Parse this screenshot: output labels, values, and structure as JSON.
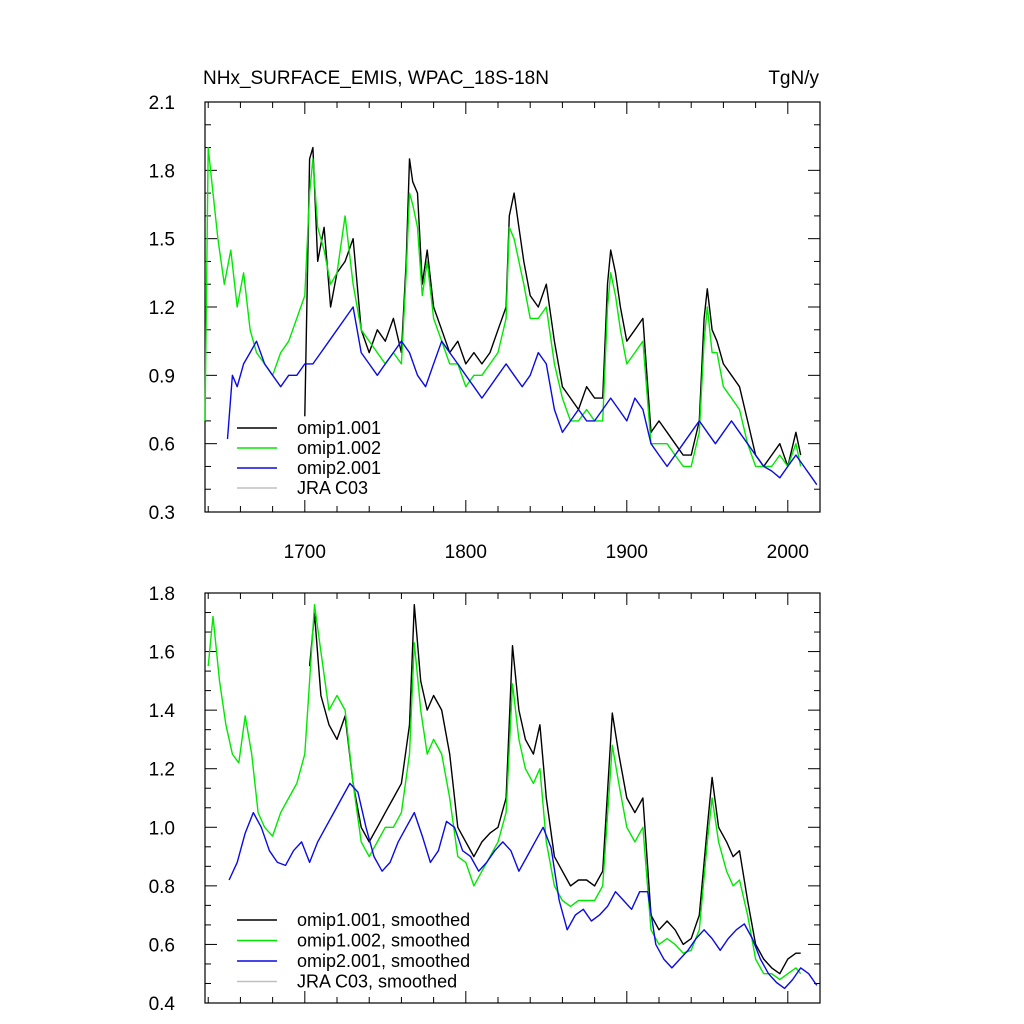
{
  "colors": {
    "omip1_001": "#000000",
    "omip1_002": "#00e800",
    "omip2_001": "#0a0ae6",
    "jra": "#c0c0c0"
  },
  "chart_data": [
    {
      "type": "line",
      "title": "NHx_SURFACE_EMIS, WPAC_18S-18N",
      "units": "TgN/y",
      "xlim": [
        1638,
        2020
      ],
      "ylim": [
        0.3,
        2.1
      ],
      "yticks": [
        "0.3",
        "0.6",
        "0.9",
        "1.2",
        "1.5",
        "1.8",
        "2.1"
      ],
      "xticks": [
        "1700",
        "1800",
        "1900",
        "2000"
      ],
      "legend": [
        "omip1.001",
        "omip1.002",
        "omip2.001",
        "JRA C03"
      ],
      "series": [
        {
          "name": "omip1.001",
          "key": "omip1_001",
          "x": [
            1700,
            1703,
            1705,
            1708,
            1712,
            1716,
            1720,
            1725,
            1730,
            1735,
            1740,
            1745,
            1750,
            1755,
            1760,
            1763,
            1765,
            1767,
            1770,
            1773,
            1776,
            1780,
            1785,
            1790,
            1795,
            1800,
            1805,
            1810,
            1815,
            1820,
            1825,
            1827,
            1830,
            1833,
            1836,
            1840,
            1845,
            1850,
            1855,
            1860,
            1865,
            1870,
            1875,
            1880,
            1885,
            1888,
            1890,
            1893,
            1896,
            1900,
            1905,
            1910,
            1915,
            1920,
            1925,
            1930,
            1935,
            1940,
            1945,
            1948,
            1950,
            1953,
            1956,
            1960,
            1965,
            1970,
            1975,
            1980,
            1985,
            1990,
            1995,
            2000,
            2005,
            2008
          ],
          "y": [
            0.72,
            1.85,
            1.9,
            1.4,
            1.55,
            1.2,
            1.35,
            1.4,
            1.5,
            1.1,
            1.0,
            1.1,
            1.05,
            1.15,
            1.0,
            1.4,
            1.85,
            1.75,
            1.7,
            1.3,
            1.45,
            1.2,
            1.1,
            1.0,
            1.05,
            0.95,
            1.0,
            0.95,
            1.0,
            1.1,
            1.2,
            1.6,
            1.7,
            1.55,
            1.4,
            1.25,
            1.2,
            1.3,
            1.05,
            0.85,
            0.8,
            0.75,
            0.85,
            0.8,
            0.8,
            1.3,
            1.45,
            1.35,
            1.2,
            1.05,
            1.1,
            1.15,
            0.65,
            0.7,
            0.65,
            0.6,
            0.55,
            0.55,
            0.7,
            1.15,
            1.28,
            1.1,
            1.05,
            0.95,
            0.9,
            0.85,
            0.7,
            0.55,
            0.5,
            0.55,
            0.6,
            0.5,
            0.65,
            0.55
          ]
        },
        {
          "name": "omip1.002",
          "key": "omip1_002",
          "x": [
            1638,
            1640,
            1643,
            1646,
            1650,
            1654,
            1658,
            1662,
            1666,
            1670,
            1675,
            1680,
            1685,
            1690,
            1695,
            1700,
            1703,
            1705,
            1708,
            1712,
            1716,
            1720,
            1725,
            1730,
            1735,
            1740,
            1745,
            1750,
            1755,
            1760,
            1763,
            1765,
            1767,
            1770,
            1773,
            1776,
            1780,
            1785,
            1790,
            1795,
            1800,
            1805,
            1810,
            1815,
            1820,
            1825,
            1827,
            1830,
            1833,
            1836,
            1840,
            1845,
            1850,
            1855,
            1860,
            1865,
            1870,
            1875,
            1880,
            1885,
            1888,
            1890,
            1893,
            1896,
            1900,
            1905,
            1910,
            1915,
            1920,
            1925,
            1930,
            1935,
            1940,
            1945,
            1948,
            1950,
            1953,
            1956,
            1960,
            1965,
            1970,
            1975,
            1980,
            1985,
            1990,
            1995,
            2000,
            2005,
            2008
          ],
          "y": [
            0.7,
            1.9,
            1.7,
            1.5,
            1.3,
            1.45,
            1.2,
            1.35,
            1.1,
            1.0,
            0.95,
            0.9,
            1.0,
            1.05,
            1.15,
            1.25,
            1.7,
            1.85,
            1.55,
            1.45,
            1.3,
            1.35,
            1.6,
            1.3,
            1.1,
            1.05,
            1.0,
            0.95,
            1.0,
            0.95,
            1.35,
            1.7,
            1.65,
            1.55,
            1.25,
            1.4,
            1.15,
            1.05,
            0.95,
            0.95,
            0.85,
            0.9,
            0.9,
            0.95,
            1.0,
            1.15,
            1.55,
            1.5,
            1.4,
            1.3,
            1.15,
            1.15,
            1.2,
            0.95,
            0.8,
            0.7,
            0.7,
            0.75,
            0.7,
            0.7,
            1.2,
            1.35,
            1.25,
            1.1,
            0.95,
            1.0,
            1.05,
            0.6,
            0.6,
            0.6,
            0.55,
            0.5,
            0.5,
            0.65,
            1.05,
            1.2,
            1.0,
            1.0,
            0.85,
            0.8,
            0.75,
            0.6,
            0.5,
            0.5,
            0.5,
            0.55,
            0.5,
            0.6,
            0.5
          ]
        },
        {
          "name": "omip2.001",
          "key": "omip2_001",
          "x": [
            1652,
            1655,
            1658,
            1662,
            1666,
            1670,
            1675,
            1680,
            1685,
            1690,
            1695,
            1700,
            1705,
            1710,
            1715,
            1720,
            1725,
            1730,
            1735,
            1740,
            1745,
            1750,
            1755,
            1760,
            1765,
            1770,
            1775,
            1780,
            1785,
            1790,
            1795,
            1800,
            1805,
            1810,
            1815,
            1820,
            1825,
            1830,
            1835,
            1840,
            1845,
            1850,
            1855,
            1860,
            1865,
            1870,
            1875,
            1880,
            1885,
            1890,
            1895,
            1900,
            1905,
            1910,
            1915,
            1920,
            1925,
            1930,
            1935,
            1940,
            1945,
            1950,
            1955,
            1960,
            1965,
            1970,
            1975,
            1980,
            1985,
            1990,
            1995,
            2000,
            2005,
            2010,
            2015,
            2018
          ],
          "y": [
            0.62,
            0.9,
            0.85,
            0.95,
            1.0,
            1.05,
            0.95,
            0.9,
            0.85,
            0.9,
            0.9,
            0.95,
            0.95,
            1.0,
            1.05,
            1.1,
            1.15,
            1.2,
            1.0,
            0.95,
            0.9,
            0.95,
            1.0,
            1.05,
            1.0,
            0.9,
            0.85,
            0.95,
            1.05,
            1.0,
            0.95,
            0.9,
            0.85,
            0.8,
            0.85,
            0.9,
            0.95,
            0.9,
            0.85,
            0.9,
            1.0,
            0.95,
            0.75,
            0.65,
            0.7,
            0.75,
            0.7,
            0.7,
            0.75,
            0.8,
            0.75,
            0.7,
            0.8,
            0.75,
            0.6,
            0.55,
            0.5,
            0.55,
            0.6,
            0.65,
            0.7,
            0.65,
            0.6,
            0.65,
            0.7,
            0.65,
            0.6,
            0.55,
            0.5,
            0.48,
            0.45,
            0.5,
            0.55,
            0.5,
            0.45,
            0.42
          ]
        },
        {
          "name": "JRA C03",
          "key": "jra",
          "x": [],
          "y": []
        }
      ]
    },
    {
      "type": "line",
      "xlim": [
        1638,
        2020
      ],
      "ylim": [
        0.4,
        1.8
      ],
      "yticks": [
        "0.4",
        "0.6",
        "0.8",
        "1.0",
        "1.2",
        "1.4",
        "1.6",
        "1.8"
      ],
      "legend": [
        "omip1.001, smoothed",
        "omip1.002, smoothed",
        "omip2.001, smoothed",
        "JRA C03, smoothed"
      ],
      "series": [
        {
          "name": "omip1.001, smoothed",
          "key": "omip1_001",
          "x": [
            1703,
            1706,
            1710,
            1715,
            1720,
            1725,
            1730,
            1735,
            1740,
            1745,
            1750,
            1755,
            1760,
            1765,
            1768,
            1772,
            1776,
            1780,
            1785,
            1790,
            1795,
            1800,
            1805,
            1810,
            1815,
            1820,
            1825,
            1829,
            1833,
            1837,
            1842,
            1846,
            1850,
            1855,
            1860,
            1865,
            1870,
            1875,
            1880,
            1885,
            1891,
            1895,
            1900,
            1905,
            1910,
            1915,
            1920,
            1925,
            1930,
            1935,
            1940,
            1945,
            1950,
            1953,
            1957,
            1962,
            1966,
            1970,
            1975,
            1980,
            1985,
            1990,
            1995,
            2000,
            2005,
            2008
          ],
          "y": [
            1.55,
            1.73,
            1.45,
            1.35,
            1.3,
            1.38,
            1.15,
            1.0,
            0.95,
            1.0,
            1.05,
            1.1,
            1.15,
            1.35,
            1.76,
            1.5,
            1.4,
            1.45,
            1.4,
            1.25,
            1.0,
            0.95,
            0.9,
            0.95,
            0.98,
            1.0,
            1.1,
            1.62,
            1.4,
            1.3,
            1.25,
            1.35,
            1.1,
            0.9,
            0.85,
            0.8,
            0.82,
            0.82,
            0.8,
            0.85,
            1.39,
            1.25,
            1.1,
            1.05,
            1.1,
            0.7,
            0.65,
            0.68,
            0.65,
            0.6,
            0.62,
            0.7,
            1.0,
            1.17,
            1.0,
            0.95,
            0.9,
            0.92,
            0.75,
            0.6,
            0.55,
            0.52,
            0.5,
            0.55,
            0.57,
            0.57
          ]
        },
        {
          "name": "omip1.002, smoothed",
          "key": "omip1_002",
          "x": [
            1640,
            1643,
            1647,
            1651,
            1655,
            1659,
            1663,
            1667,
            1671,
            1675,
            1680,
            1685,
            1690,
            1695,
            1700,
            1703,
            1706,
            1710,
            1715,
            1720,
            1725,
            1730,
            1735,
            1740,
            1745,
            1750,
            1755,
            1760,
            1765,
            1768,
            1772,
            1776,
            1780,
            1785,
            1790,
            1795,
            1800,
            1805,
            1810,
            1815,
            1820,
            1825,
            1829,
            1833,
            1837,
            1842,
            1846,
            1850,
            1855,
            1860,
            1865,
            1870,
            1875,
            1880,
            1885,
            1891,
            1895,
            1900,
            1905,
            1910,
            1915,
            1920,
            1925,
            1930,
            1935,
            1940,
            1945,
            1950,
            1953,
            1957,
            1962,
            1966,
            1970,
            1975,
            1980,
            1985,
            1990,
            1995,
            2000,
            2005,
            2008
          ],
          "y": [
            1.55,
            1.72,
            1.5,
            1.35,
            1.25,
            1.22,
            1.38,
            1.25,
            1.05,
            1.0,
            0.97,
            1.05,
            1.1,
            1.15,
            1.25,
            1.5,
            1.76,
            1.6,
            1.4,
            1.45,
            1.4,
            1.15,
            0.95,
            0.9,
            0.95,
            1.0,
            1.0,
            1.05,
            1.25,
            1.63,
            1.4,
            1.25,
            1.3,
            1.25,
            1.1,
            0.9,
            0.88,
            0.8,
            0.85,
            0.9,
            0.95,
            1.05,
            1.49,
            1.3,
            1.2,
            1.15,
            1.2,
            0.95,
            0.8,
            0.75,
            0.73,
            0.75,
            0.75,
            0.75,
            0.8,
            1.28,
            1.15,
            1.0,
            0.95,
            1.0,
            0.65,
            0.6,
            0.62,
            0.6,
            0.57,
            0.58,
            0.65,
            0.95,
            1.1,
            0.95,
            0.85,
            0.8,
            0.82,
            0.7,
            0.55,
            0.5,
            0.5,
            0.48,
            0.5,
            0.52,
            0.5
          ]
        },
        {
          "name": "omip2.001, smoothed",
          "key": "omip2_001",
          "x": [
            1653,
            1658,
            1663,
            1668,
            1673,
            1678,
            1683,
            1688,
            1693,
            1698,
            1703,
            1708,
            1713,
            1718,
            1723,
            1728,
            1733,
            1738,
            1743,
            1748,
            1753,
            1758,
            1763,
            1768,
            1773,
            1778,
            1783,
            1788,
            1793,
            1798,
            1803,
            1808,
            1813,
            1818,
            1823,
            1828,
            1833,
            1838,
            1843,
            1848,
            1853,
            1858,
            1863,
            1868,
            1873,
            1878,
            1883,
            1888,
            1893,
            1898,
            1903,
            1908,
            1913,
            1918,
            1923,
            1928,
            1933,
            1938,
            1943,
            1948,
            1953,
            1958,
            1963,
            1968,
            1973,
            1978,
            1983,
            1988,
            1993,
            1998,
            2003,
            2008,
            2013,
            2018
          ],
          "y": [
            0.82,
            0.88,
            0.98,
            1.05,
            1.0,
            0.92,
            0.88,
            0.87,
            0.92,
            0.95,
            0.88,
            0.95,
            1.0,
            1.05,
            1.1,
            1.15,
            1.12,
            1.0,
            0.9,
            0.85,
            0.88,
            0.95,
            1.0,
            1.05,
            0.97,
            0.88,
            0.92,
            1.02,
            1.0,
            0.92,
            0.9,
            0.85,
            0.88,
            0.92,
            0.95,
            0.92,
            0.85,
            0.9,
            0.95,
            1.0,
            0.93,
            0.75,
            0.65,
            0.7,
            0.72,
            0.68,
            0.7,
            0.73,
            0.78,
            0.75,
            0.72,
            0.78,
            0.78,
            0.6,
            0.55,
            0.52,
            0.55,
            0.58,
            0.62,
            0.65,
            0.62,
            0.58,
            0.62,
            0.65,
            0.67,
            0.62,
            0.55,
            0.5,
            0.47,
            0.45,
            0.48,
            0.52,
            0.5,
            0.46
          ]
        },
        {
          "name": "JRA C03, smoothed",
          "key": "jra",
          "x": [],
          "y": []
        }
      ]
    }
  ]
}
